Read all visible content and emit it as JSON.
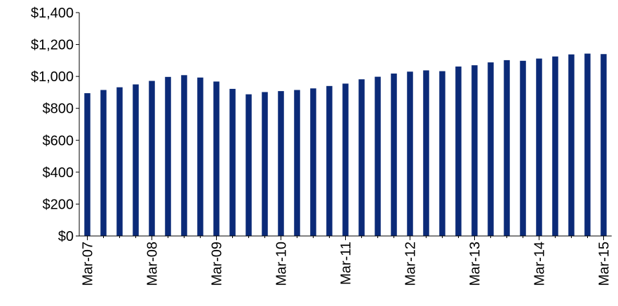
{
  "chart_data": {
    "type": "bar",
    "title": "",
    "xlabel": "",
    "ylabel": "",
    "bar_color": "#0B2A78",
    "ylim": [
      0,
      1400
    ],
    "y_ticks": [
      0,
      200,
      400,
      600,
      800,
      1000,
      1200,
      1400
    ],
    "y_tick_labels": [
      "$0",
      "$200",
      "$400",
      "$600",
      "$800",
      "$1,000",
      "$1,200",
      "$1,400"
    ],
    "x_tick_labels": [
      "Mar-07",
      "Mar-08",
      "Mar-09",
      "Mar-10",
      "Mar-11",
      "Mar-12",
      "Mar-13",
      "Mar-14",
      "Mar-15"
    ],
    "categories": [
      "Mar-07",
      "Jun-07",
      "Sep-07",
      "Dec-07",
      "Mar-08",
      "Jun-08",
      "Sep-08",
      "Dec-08",
      "Mar-09",
      "Jun-09",
      "Sep-09",
      "Dec-09",
      "Mar-10",
      "Jun-10",
      "Sep-10",
      "Dec-10",
      "Mar-11",
      "Jun-11",
      "Sep-11",
      "Dec-11",
      "Mar-12",
      "Jun-12",
      "Sep-12",
      "Dec-12",
      "Mar-13",
      "Jun-13",
      "Sep-13",
      "Dec-13",
      "Mar-14",
      "Jun-14",
      "Sep-14",
      "Dec-14",
      "Mar-15"
    ],
    "values": [
      895,
      915,
      932,
      950,
      972,
      997,
      1008,
      993,
      968,
      922,
      888,
      902,
      908,
      915,
      925,
      940,
      955,
      982,
      998,
      1018,
      1030,
      1038,
      1033,
      1062,
      1070,
      1088,
      1102,
      1098,
      1112,
      1125,
      1138,
      1143,
      1140
    ]
  }
}
